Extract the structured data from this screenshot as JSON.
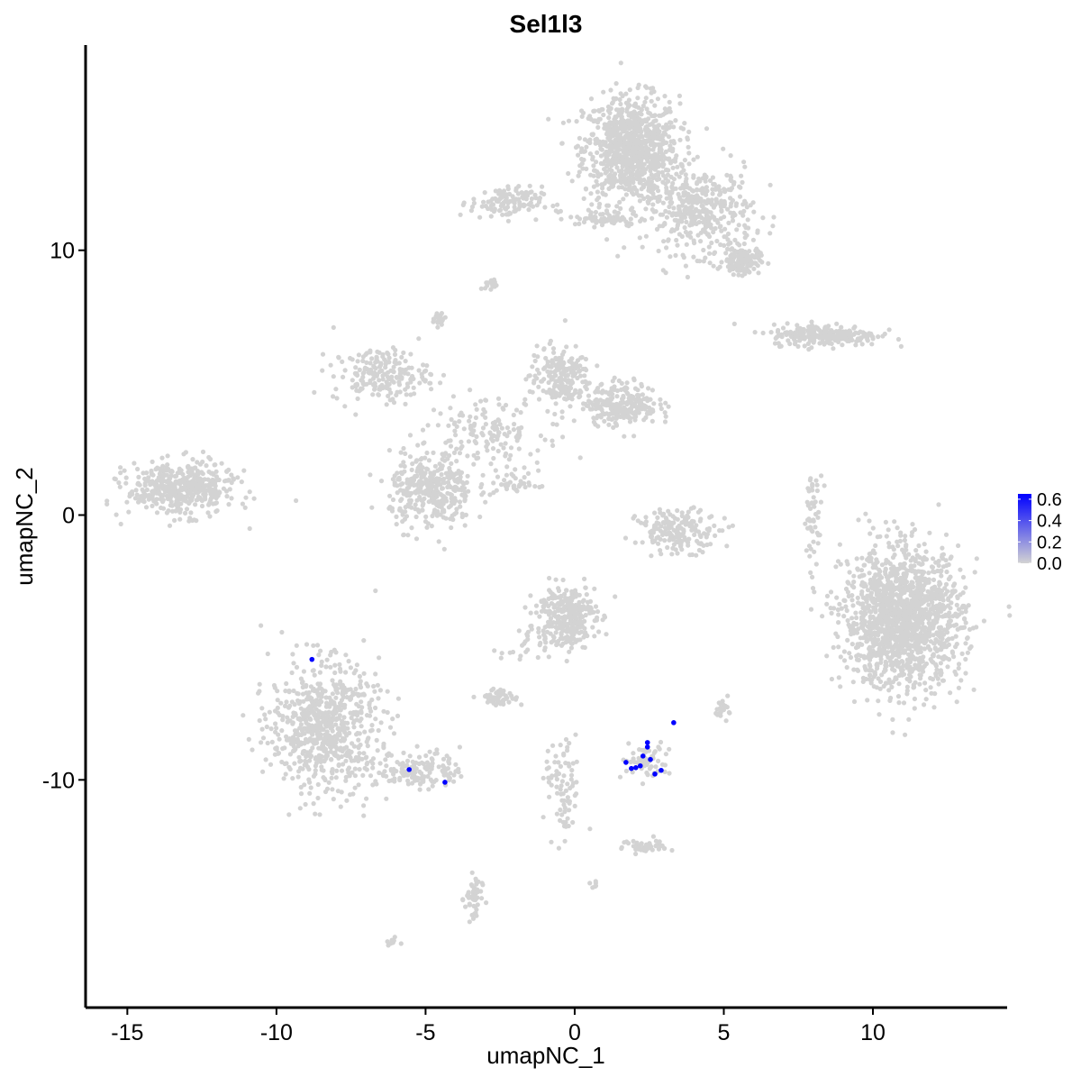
{
  "chart_data": {
    "type": "scatter",
    "title": "Sel1l3",
    "xlabel": "umapNC_1",
    "ylabel": "umapNC_2",
    "xlim": [
      -16.4,
      14.5
    ],
    "ylim": [
      -18.6,
      17.75
    ],
    "xticks": [
      -15,
      -10,
      -5,
      0,
      5,
      10
    ],
    "yticks": [
      -10,
      0,
      10
    ],
    "grid": false,
    "legend": {
      "position": "right",
      "type": "colorbar",
      "ticks": [
        "0.0",
        "0.2",
        "0.4",
        "0.6"
      ],
      "range": [
        0,
        0.65
      ],
      "low_color": "#D3D3D3",
      "high_color": "#0000FF"
    },
    "background_color_value": 0,
    "background_clusters": [
      {
        "center": [
          1.9,
          13.8
        ],
        "sd": [
          0.8,
          1.0
        ],
        "n": 900
      },
      {
        "center": [
          4.2,
          11.5
        ],
        "sd": [
          0.9,
          0.8
        ],
        "n": 400
      },
      {
        "center": [
          5.6,
          9.6
        ],
        "sd": [
          0.3,
          0.25
        ],
        "n": 150
      },
      {
        "center": [
          -2.3,
          11.8
        ],
        "sd": [
          0.6,
          0.3
        ],
        "n": 120
      },
      {
        "center": [
          1.0,
          11.2
        ],
        "sd": [
          0.6,
          0.15
        ],
        "n": 60
      },
      {
        "center": [
          -2.8,
          8.7
        ],
        "sd": [
          0.1,
          0.1
        ],
        "n": 20
      },
      {
        "center": [
          -4.55,
          7.45
        ],
        "sd": [
          0.12,
          0.15
        ],
        "n": 20
      },
      {
        "center": [
          8.4,
          6.8
        ],
        "sd": [
          0.9,
          0.2
        ],
        "n": 250
      },
      {
        "center": [
          -6.5,
          5.3
        ],
        "sd": [
          0.8,
          0.5
        ],
        "n": 200
      },
      {
        "center": [
          -0.5,
          5.2
        ],
        "sd": [
          0.5,
          0.6
        ],
        "n": 200
      },
      {
        "center": [
          1.6,
          4.2
        ],
        "sd": [
          0.6,
          0.4
        ],
        "n": 250
      },
      {
        "center": [
          -4.8,
          0.9
        ],
        "sd": [
          0.7,
          0.7
        ],
        "n": 350
      },
      {
        "center": [
          -3.0,
          3.2
        ],
        "sd": [
          1.0,
          0.6
        ],
        "n": 150
      },
      {
        "center": [
          -2.0,
          1.2
        ],
        "sd": [
          0.4,
          0.25
        ],
        "n": 40
      },
      {
        "center": [
          -13.2,
          1.0
        ],
        "sd": [
          0.9,
          0.5
        ],
        "n": 450
      },
      {
        "center": [
          3.5,
          -0.6
        ],
        "sd": [
          0.7,
          0.4
        ],
        "n": 180
      },
      {
        "center": [
          8.0,
          0.0
        ],
        "sd": [
          0.15,
          0.8
        ],
        "n": 50
      },
      {
        "center": [
          11.0,
          -3.9
        ],
        "sd": [
          1.0,
          1.3
        ],
        "n": 1500
      },
      {
        "center": [
          -0.3,
          -3.8
        ],
        "sd": [
          0.5,
          0.6
        ],
        "n": 300
      },
      {
        "center": [
          -8.4,
          -8.0
        ],
        "sd": [
          0.9,
          1.2
        ],
        "n": 700
      },
      {
        "center": [
          -5.2,
          -9.6
        ],
        "sd": [
          0.7,
          0.35
        ],
        "n": 150
      },
      {
        "center": [
          -2.5,
          -6.9
        ],
        "sd": [
          0.3,
          0.15
        ],
        "n": 60
      },
      {
        "center": [
          2.4,
          -9.3
        ],
        "sd": [
          0.4,
          0.35
        ],
        "n": 60
      },
      {
        "center": [
          5.0,
          -7.3
        ],
        "sd": [
          0.15,
          0.2
        ],
        "n": 20
      },
      {
        "center": [
          -0.4,
          -10.5
        ],
        "sd": [
          0.3,
          1.0
        ],
        "n": 80
      },
      {
        "center": [
          2.4,
          -12.5
        ],
        "sd": [
          0.4,
          0.15
        ],
        "n": 40
      },
      {
        "center": [
          -3.4,
          -14.5
        ],
        "sd": [
          0.15,
          0.5
        ],
        "n": 50
      },
      {
        "center": [
          -6.1,
          -16.1
        ],
        "sd": [
          0.1,
          0.08
        ],
        "n": 8
      },
      {
        "center": [
          0.6,
          -14.0
        ],
        "sd": [
          0.08,
          0.08
        ],
        "n": 6
      },
      {
        "center": [
          -1.5,
          -5.0
        ],
        "sd": [
          0.5,
          0.4
        ],
        "n": 30
      }
    ],
    "expressed_points": [
      {
        "x": 3.32,
        "y": -7.84,
        "value": 0.65
      },
      {
        "x": 2.44,
        "y": -8.59,
        "value": 0.65
      },
      {
        "x": 2.44,
        "y": -8.76,
        "value": 0.65
      },
      {
        "x": 1.72,
        "y": -9.34,
        "value": 0.65
      },
      {
        "x": 2.29,
        "y": -9.1,
        "value": 0.65
      },
      {
        "x": 2.54,
        "y": -9.23,
        "value": 0.65
      },
      {
        "x": 1.9,
        "y": -9.57,
        "value": 0.65
      },
      {
        "x": 2.05,
        "y": -9.54,
        "value": 0.65
      },
      {
        "x": 2.2,
        "y": -9.47,
        "value": 0.65
      },
      {
        "x": 2.69,
        "y": -9.78,
        "value": 0.65
      },
      {
        "x": 2.9,
        "y": -9.64,
        "value": 0.65
      },
      {
        "x": -8.81,
        "y": -5.45,
        "value": 0.65
      },
      {
        "x": -5.55,
        "y": -9.61,
        "value": 0.65
      },
      {
        "x": -4.35,
        "y": -10.09,
        "value": 0.65
      }
    ]
  }
}
